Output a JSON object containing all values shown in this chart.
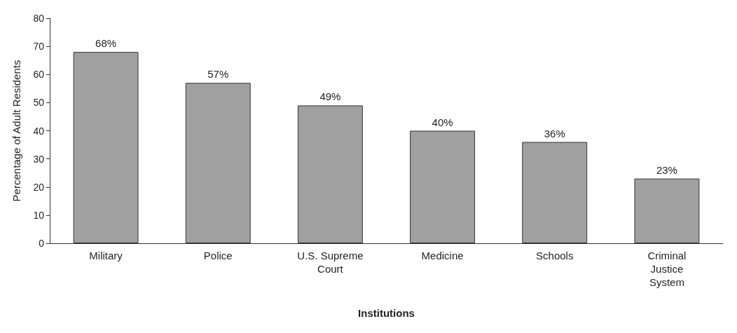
{
  "chart_data": {
    "type": "bar",
    "categories": [
      "Military",
      "Police",
      "U.S. Supreme\nCourt",
      "Medicine",
      "Schools",
      "Criminal\nJustice\nSystem"
    ],
    "values": [
      68,
      57,
      49,
      40,
      36,
      23
    ],
    "value_labels": [
      "68%",
      "57%",
      "49%",
      "40%",
      "36%",
      "23%"
    ],
    "color": "#a0a0a0",
    "xlabel": "Institutions",
    "ylabel": "Percentage of Adult Residents",
    "ylim": [
      0,
      80
    ],
    "yticks": [
      0,
      10,
      20,
      30,
      40,
      50,
      60,
      70,
      80
    ]
  }
}
